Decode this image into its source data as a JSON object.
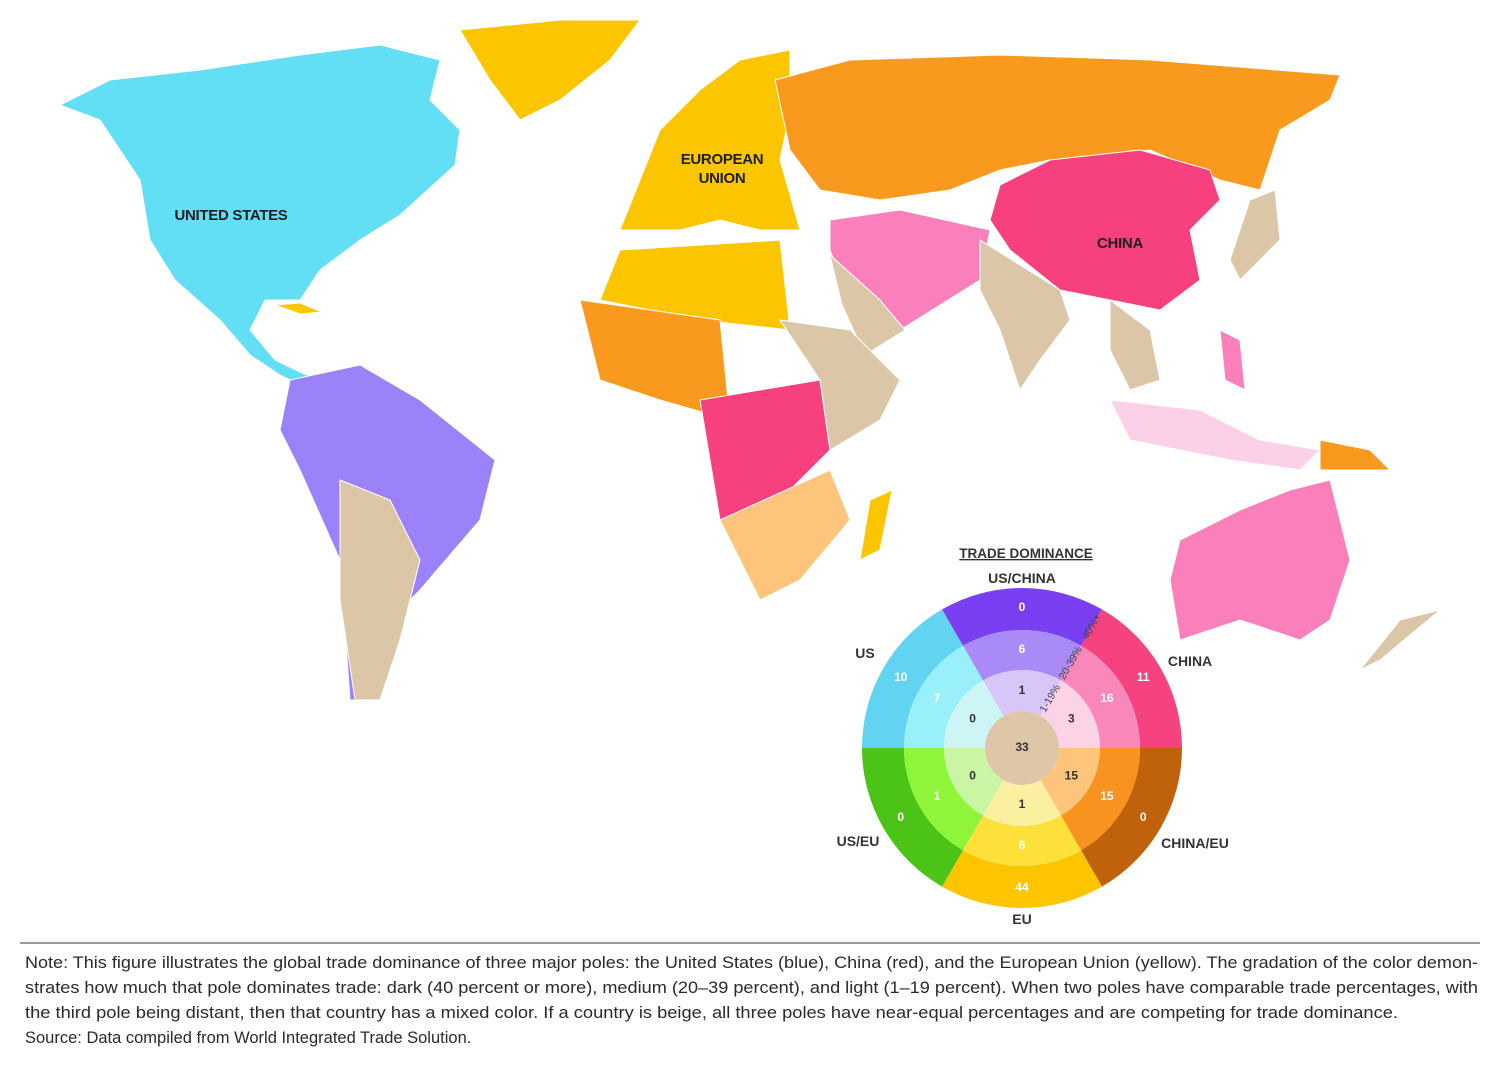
{
  "map": {
    "labels": [
      "UNITED STATES",
      "EUROPEAN UNION",
      "CHINA"
    ]
  },
  "legend": {
    "title": "TRADE DOMINANCE",
    "ring_labels": [
      "1-19%",
      "20-39%",
      "40%+"
    ],
    "center": {
      "value": 33,
      "color": "#dfc6a8"
    },
    "sectors": [
      {
        "label": "US/CHINA",
        "colors": [
          "#7b3ff2",
          "#a98af6",
          "#d8c6f8"
        ],
        "values": [
          0,
          6,
          1
        ]
      },
      {
        "label": "CHINA",
        "colors": [
          "#f5437f",
          "#f987ba",
          "#fcd2e7"
        ],
        "values": [
          11,
          16,
          3
        ]
      },
      {
        "label": "CHINA/EU",
        "colors": [
          "#c0620c",
          "#f7931e",
          "#fdc47c"
        ],
        "values": [
          0,
          15,
          15
        ]
      },
      {
        "label": "EU",
        "colors": [
          "#fcc500",
          "#fde13a",
          "#fbf0a0"
        ],
        "values": [
          44,
          8,
          1
        ]
      },
      {
        "label": "US/EU",
        "colors": [
          "#4cc417",
          "#8ef53a",
          "#caf5a4"
        ],
        "values": [
          0,
          1,
          0
        ]
      },
      {
        "label": "US",
        "colors": [
          "#62d4f2",
          "#99f0fb",
          "#cdf5f5"
        ],
        "values": [
          10,
          7,
          0
        ]
      }
    ]
  },
  "note": [
    "Note: This figure illustrates the global trade dominance of three major poles: the United States (blue), China (red), and the European Union (yellow). The gradation of the color demon-",
    "strates how much that pole dominates trade: dark (40 percent or more), medium (20–39 percent), and light (1–19 percent). When two poles have comparable trade percentages, with",
    "the third pole being distant, then that country has a mixed color. If a country is beige, all three poles have near-equal percentages and are competing for trade dominance.",
    "Source: Data compiled from World Integrated Trade Solution."
  ]
}
